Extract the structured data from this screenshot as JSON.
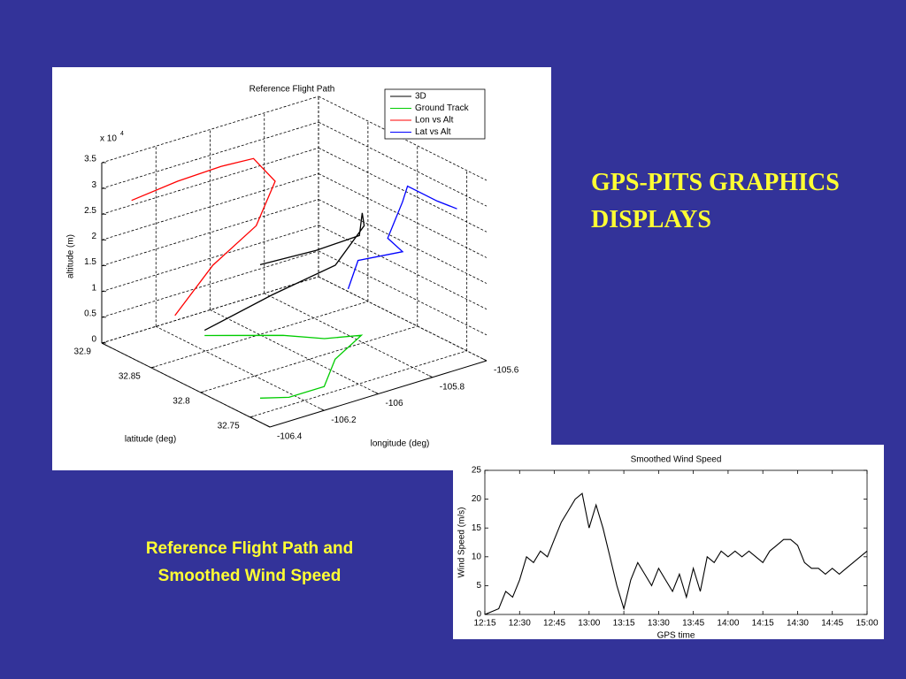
{
  "slide": {
    "title_lines": [
      "GPS-PITS GRAPHICS",
      "DISPLAYS"
    ],
    "caption_lines": [
      "Reference Flight Path and",
      "Smoothed Wind Speed"
    ]
  },
  "chart_data": [
    {
      "type": "line3d",
      "title": "Reference Flight Path",
      "xlabel": "longitude (deg)",
      "ylabel": "latitude (deg)",
      "zlabel": "altitude (m)",
      "z_multiplier": {
        "base": "x 10",
        "exponent": "4"
      },
      "xlim": [
        -106.4,
        -105.6
      ],
      "xticks": [
        -106.4,
        -106.2,
        -106,
        -105.8,
        -105.6
      ],
      "ylim": [
        32.73,
        32.9
      ],
      "yticks": [
        32.75,
        32.8,
        32.85,
        32.9
      ],
      "zlim": [
        0,
        3.5
      ],
      "zticks": [
        0,
        0.5,
        1,
        1.5,
        2,
        2.5,
        3,
        3.5
      ],
      "grid": true,
      "legend": "upper right",
      "series": [
        {
          "name": "3D",
          "color": "#000000",
          "x": [
            -106.13,
            -105.99,
            -105.83,
            -105.76,
            -105.84,
            -105.96,
            -106.12,
            -106.29
          ],
          "y": [
            32.87,
            32.84,
            32.82,
            32.81,
            32.79,
            32.76,
            32.76,
            32.77
          ],
          "z": [
            0.1,
            0.85,
            1.36,
            2.11,
            2.68,
            2.72,
            2.69,
            2.59
          ]
        },
        {
          "name": "Ground Track",
          "color": "#00cc00",
          "x": [
            -106.13,
            -105.95,
            -105.87,
            -105.77,
            -105.94,
            -106.09,
            -106.22,
            -106.29
          ],
          "y": [
            32.87,
            32.84,
            32.82,
            32.81,
            32.79,
            32.76,
            32.76,
            32.77
          ],
          "z": [
            0,
            0,
            0,
            0,
            0,
            0,
            0,
            0
          ]
        },
        {
          "name": "Lon vs Alt",
          "color": "#ff0000",
          "x": [
            -106.13,
            -105.99,
            -105.83,
            -105.76,
            -105.84,
            -105.96,
            -106.12,
            -106.29
          ],
          "y": [
            32.9,
            32.9,
            32.9,
            32.9,
            32.9,
            32.9,
            32.9,
            32.9
          ],
          "z": [
            0.1,
            0.85,
            1.36,
            2.11,
            2.68,
            2.72,
            2.69,
            2.59
          ]
        },
        {
          "name": "Lat vs Alt",
          "color": "#0000ff",
          "x": [
            -105.6,
            -105.6,
            -105.6,
            -105.6,
            -105.6,
            -105.6,
            -105.6,
            -105.6
          ],
          "y": [
            32.87,
            32.86,
            32.815,
            32.83,
            32.815,
            32.81,
            32.78,
            32.76
          ],
          "z": [
            0.05,
            0.7,
            1.3,
            1.42,
            2.27,
            2.62,
            2.62,
            2.66
          ]
        }
      ]
    },
    {
      "type": "line",
      "title": "Smoothed Wind Speed",
      "xlabel": "GPS time",
      "ylabel": "Wind Speed (m/s)",
      "color": "#000000",
      "x": [
        "12:15",
        "12:18",
        "12:21",
        "12:24",
        "12:27",
        "12:30",
        "12:33",
        "12:36",
        "12:39",
        "12:42",
        "12:45",
        "12:48",
        "12:51",
        "12:54",
        "12:57",
        "13:00",
        "13:03",
        "13:06",
        "13:09",
        "13:12",
        "13:15",
        "13:18",
        "13:21",
        "13:24",
        "13:27",
        "13:30",
        "13:33",
        "13:36",
        "13:39",
        "13:42",
        "13:45",
        "13:48",
        "13:51",
        "13:54",
        "13:57",
        "14:00",
        "14:03",
        "14:06",
        "14:09",
        "14:12",
        "14:15",
        "14:18",
        "14:21",
        "14:24",
        "14:27",
        "14:30",
        "14:33",
        "14:36",
        "14:39",
        "14:42",
        "14:45",
        "14:48",
        "14:51",
        "14:54",
        "14:57",
        "15:00"
      ],
      "values": [
        0,
        0.5,
        1,
        4,
        3,
        6,
        10,
        9,
        11,
        10,
        13,
        16,
        18,
        20,
        21,
        15,
        19,
        15,
        10,
        5,
        1,
        6,
        9,
        7,
        5,
        8,
        6,
        4,
        7,
        3,
        8,
        4,
        10,
        9,
        11,
        10,
        11,
        10,
        11,
        10,
        9,
        11,
        12,
        13,
        13,
        12,
        9,
        8,
        8,
        7,
        8,
        7,
        8,
        9,
        10,
        11
      ],
      "xlim": [
        "12:15",
        "15:00"
      ],
      "xticks": [
        "12:15",
        "12:30",
        "12:45",
        "13:00",
        "13:15",
        "13:30",
        "13:45",
        "14:00",
        "14:15",
        "14:30",
        "14:45",
        "15:00"
      ],
      "ylim": [
        0,
        25
      ],
      "yticks": [
        0,
        5,
        10,
        15,
        20,
        25
      ]
    }
  ]
}
